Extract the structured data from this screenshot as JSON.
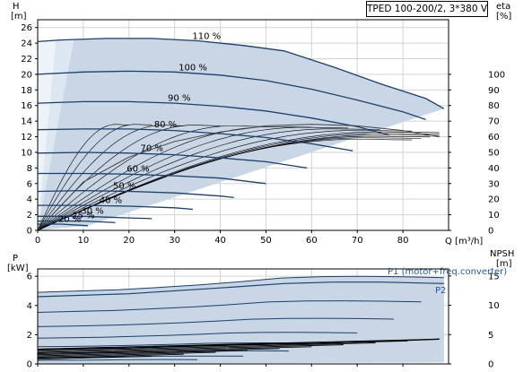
{
  "title": "TPED 100-200/2, 3*380 V",
  "colors": {
    "band": "#c9d6e6",
    "band_light": "#dde7f1",
    "band_lightest": "#edf3f9",
    "curve": "#1c3f6b",
    "efficiency_line": "#000000",
    "eta_line": "#444444",
    "grid": "#d3d3d3",
    "label": "#2a5a92"
  },
  "axes": {
    "h_label": "H",
    "h_unit": "[m]",
    "eta_label": "eta",
    "eta_unit": "[%]",
    "p_label": "P",
    "p_unit": "[kW]",
    "npsh_label": "NPSH",
    "npsh_unit": "[m]",
    "q_label": "Q [m³/h]"
  },
  "power_labels": {
    "p1": "P1 (motor+freq.converter)",
    "p2": "P2"
  },
  "chart_data": [
    {
      "type": "line",
      "name": "head-curves",
      "x_tick_labels": [
        "0",
        "10",
        "20",
        "30",
        "40",
        "50",
        "60",
        "70",
        "80"
      ],
      "y_tick_labels": [
        "0",
        "2",
        "4",
        "6",
        "8",
        "10",
        "12",
        "14",
        "16",
        "18",
        "20",
        "22",
        "24",
        "26"
      ],
      "y2_tick_labels": [
        "0",
        "10",
        "20",
        "30",
        "40",
        "50",
        "60",
        "70",
        "80",
        "90",
        "100"
      ],
      "xlim": [
        0,
        90
      ],
      "ylim": [
        0,
        27
      ],
      "y2lim": [
        0,
        135
      ],
      "grid": true,
      "series": [
        {
          "name": "110 %",
          "x": [
            0,
            5,
            15,
            25,
            35,
            45,
            54,
            65,
            75,
            85,
            89
          ],
          "y": [
            24.2,
            24.4,
            24.6,
            24.6,
            24.3,
            23.7,
            23.0,
            20.9,
            18.8,
            16.9,
            15.6
          ]
        },
        {
          "name": "100 %",
          "x": [
            0,
            10,
            20,
            30,
            40,
            50,
            60,
            70,
            80,
            85
          ],
          "y": [
            20.0,
            20.3,
            20.4,
            20.3,
            19.9,
            19.2,
            18.1,
            16.7,
            15.2,
            14.2
          ]
        },
        {
          "name": "90 %",
          "x": [
            0,
            10,
            20,
            30,
            40,
            50,
            60,
            70,
            77
          ],
          "y": [
            16.3,
            16.5,
            16.5,
            16.3,
            15.9,
            15.3,
            14.4,
            13.3,
            12.2
          ]
        },
        {
          "name": "80 %",
          "x": [
            0,
            10,
            20,
            30,
            40,
            50,
            60,
            69
          ],
          "y": [
            12.9,
            13.0,
            13.0,
            12.8,
            12.4,
            11.9,
            11.1,
            10.2
          ]
        },
        {
          "name": "70 %",
          "x": [
            0,
            10,
            20,
            30,
            40,
            50,
            59
          ],
          "y": [
            9.9,
            10.0,
            9.9,
            9.7,
            9.3,
            8.8,
            8.0
          ]
        },
        {
          "name": "60 %",
          "x": [
            0,
            10,
            20,
            30,
            40,
            50
          ],
          "y": [
            7.3,
            7.3,
            7.2,
            7.0,
            6.7,
            6.0
          ]
        },
        {
          "name": "50 %",
          "x": [
            0,
            10,
            20,
            30,
            40,
            43
          ],
          "y": [
            5.0,
            5.1,
            5.0,
            4.8,
            4.4,
            4.2
          ]
        },
        {
          "name": "40 %",
          "x": [
            0,
            10,
            20,
            30,
            34
          ],
          "y": [
            3.2,
            3.2,
            3.1,
            2.9,
            2.7
          ]
        },
        {
          "name": "30 %",
          "x": [
            0,
            10,
            20,
            25
          ],
          "y": [
            1.8,
            1.8,
            1.6,
            1.5
          ]
        },
        {
          "name": "25 %",
          "x": [
            0,
            10,
            17
          ],
          "y": [
            1.2,
            1.2,
            1.0
          ]
        },
        {
          "name": "20 %",
          "x": [
            0,
            5,
            11
          ],
          "y": [
            0.8,
            0.8,
            0.6
          ]
        },
        {
          "name": "eta",
          "x": [
            0,
            10,
            20,
            30,
            40,
            50,
            60,
            70,
            80,
            88
          ],
          "y": [
            0,
            31,
            47,
            57,
            63,
            67,
            68,
            67,
            64,
            60
          ]
        }
      ]
    },
    {
      "type": "line",
      "name": "power-curves",
      "x_tick_labels": [
        "0",
        "10",
        "20",
        "30",
        "40",
        "50",
        "60",
        "70",
        "80"
      ],
      "y_tick_labels": [
        "0",
        "2",
        "4",
        "6"
      ],
      "y2_tick_labels": [
        "0",
        "5",
        "10",
        "15"
      ],
      "xlim": [
        0,
        90
      ],
      "ylim": [
        0,
        6.5
      ],
      "y2lim": [
        0,
        16.2
      ],
      "grid": true,
      "series": [
        {
          "name": "P1 (motor+freq.converter)",
          "x": [
            0,
            20,
            40,
            54,
            65,
            75,
            89
          ],
          "y": [
            4.9,
            5.1,
            5.5,
            5.9,
            6.0,
            6.0,
            5.9
          ]
        },
        {
          "name": "P2",
          "x": [
            0,
            20,
            40,
            54,
            65,
            75,
            89
          ],
          "y": [
            4.6,
            4.8,
            5.2,
            5.5,
            5.6,
            5.6,
            5.5
          ]
        },
        {
          "name": "NPSH",
          "x": [
            0,
            20,
            40,
            60,
            80,
            88
          ],
          "y": [
            1.0,
            1.1,
            1.3,
            1.4,
            1.6,
            1.7
          ]
        }
      ]
    }
  ]
}
